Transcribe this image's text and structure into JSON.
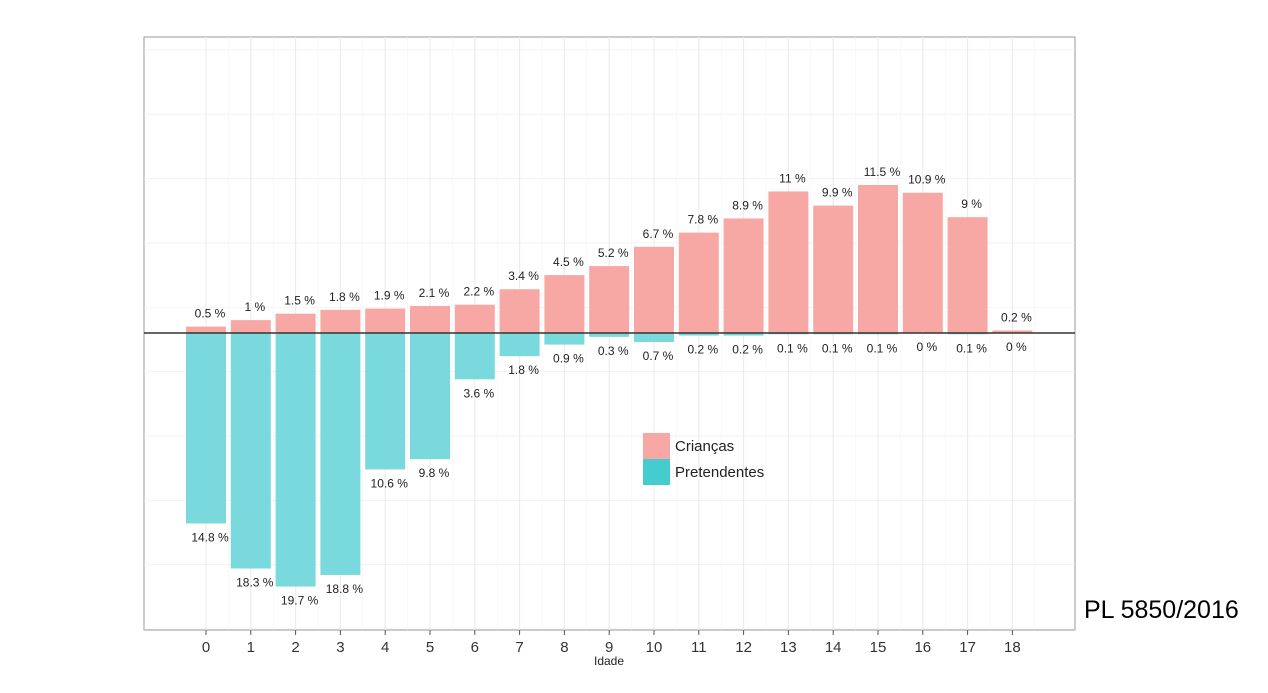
{
  "chart_data": {
    "type": "bar",
    "title": "",
    "xlabel": "Idade",
    "ylabel": "",
    "categories": [
      "0",
      "1",
      "2",
      "3",
      "4",
      "5",
      "6",
      "7",
      "8",
      "9",
      "10",
      "11",
      "12",
      "13",
      "14",
      "15",
      "16",
      "17",
      "18"
    ],
    "series": [
      {
        "name": "Crianças",
        "color": "#F8A8A4",
        "direction": "up",
        "values": [
          0.5,
          1,
          1.5,
          1.8,
          1.9,
          2.1,
          2.2,
          3.4,
          4.5,
          5.2,
          6.7,
          7.8,
          8.9,
          11,
          9.9,
          11.5,
          10.9,
          9,
          0.2
        ],
        "labels": [
          "0.5 %",
          "1 %",
          "1.5 %",
          "1.8 %",
          "1.9 %",
          "2.1 %",
          "2.2 %",
          "3.4 %",
          "4.5 %",
          "5.2 %",
          "6.7 %",
          "7.8 %",
          "8.9 %",
          "11 %",
          "9.9 %",
          "11.5 %",
          "10.9 %",
          "9 %",
          "0.2 %"
        ]
      },
      {
        "name": "Pretendentes",
        "color": "#7AD9DC",
        "direction": "down",
        "values": [
          14.8,
          18.3,
          19.7,
          18.8,
          10.6,
          9.8,
          3.6,
          1.8,
          0.9,
          0.3,
          0.7,
          0.2,
          0.2,
          0.1,
          0.1,
          0.1,
          0,
          0.1,
          0
        ],
        "labels": [
          "14.8 %",
          "18.3 %",
          "19.7 %",
          "18.8 %",
          "10.6 %",
          "9.8 %",
          "3.6 %",
          "1.8 %",
          "0.9 %",
          "0.3 %",
          "0.7 %",
          "0.2 %",
          "0.2 %",
          "0.1 %",
          "0.1 %",
          "0.1 %",
          "0 %",
          "0.1 %",
          "0 %"
        ]
      }
    ],
    "ylim": [
      -23,
      23
    ],
    "grid": true,
    "legend": {
      "placement": "center",
      "items": [
        {
          "name": "Crianças",
          "color": "#F8A8A4"
        },
        {
          "name": "Pretendentes",
          "color": "#44CCCF"
        }
      ]
    }
  },
  "footnote": "PL 5850/2016"
}
